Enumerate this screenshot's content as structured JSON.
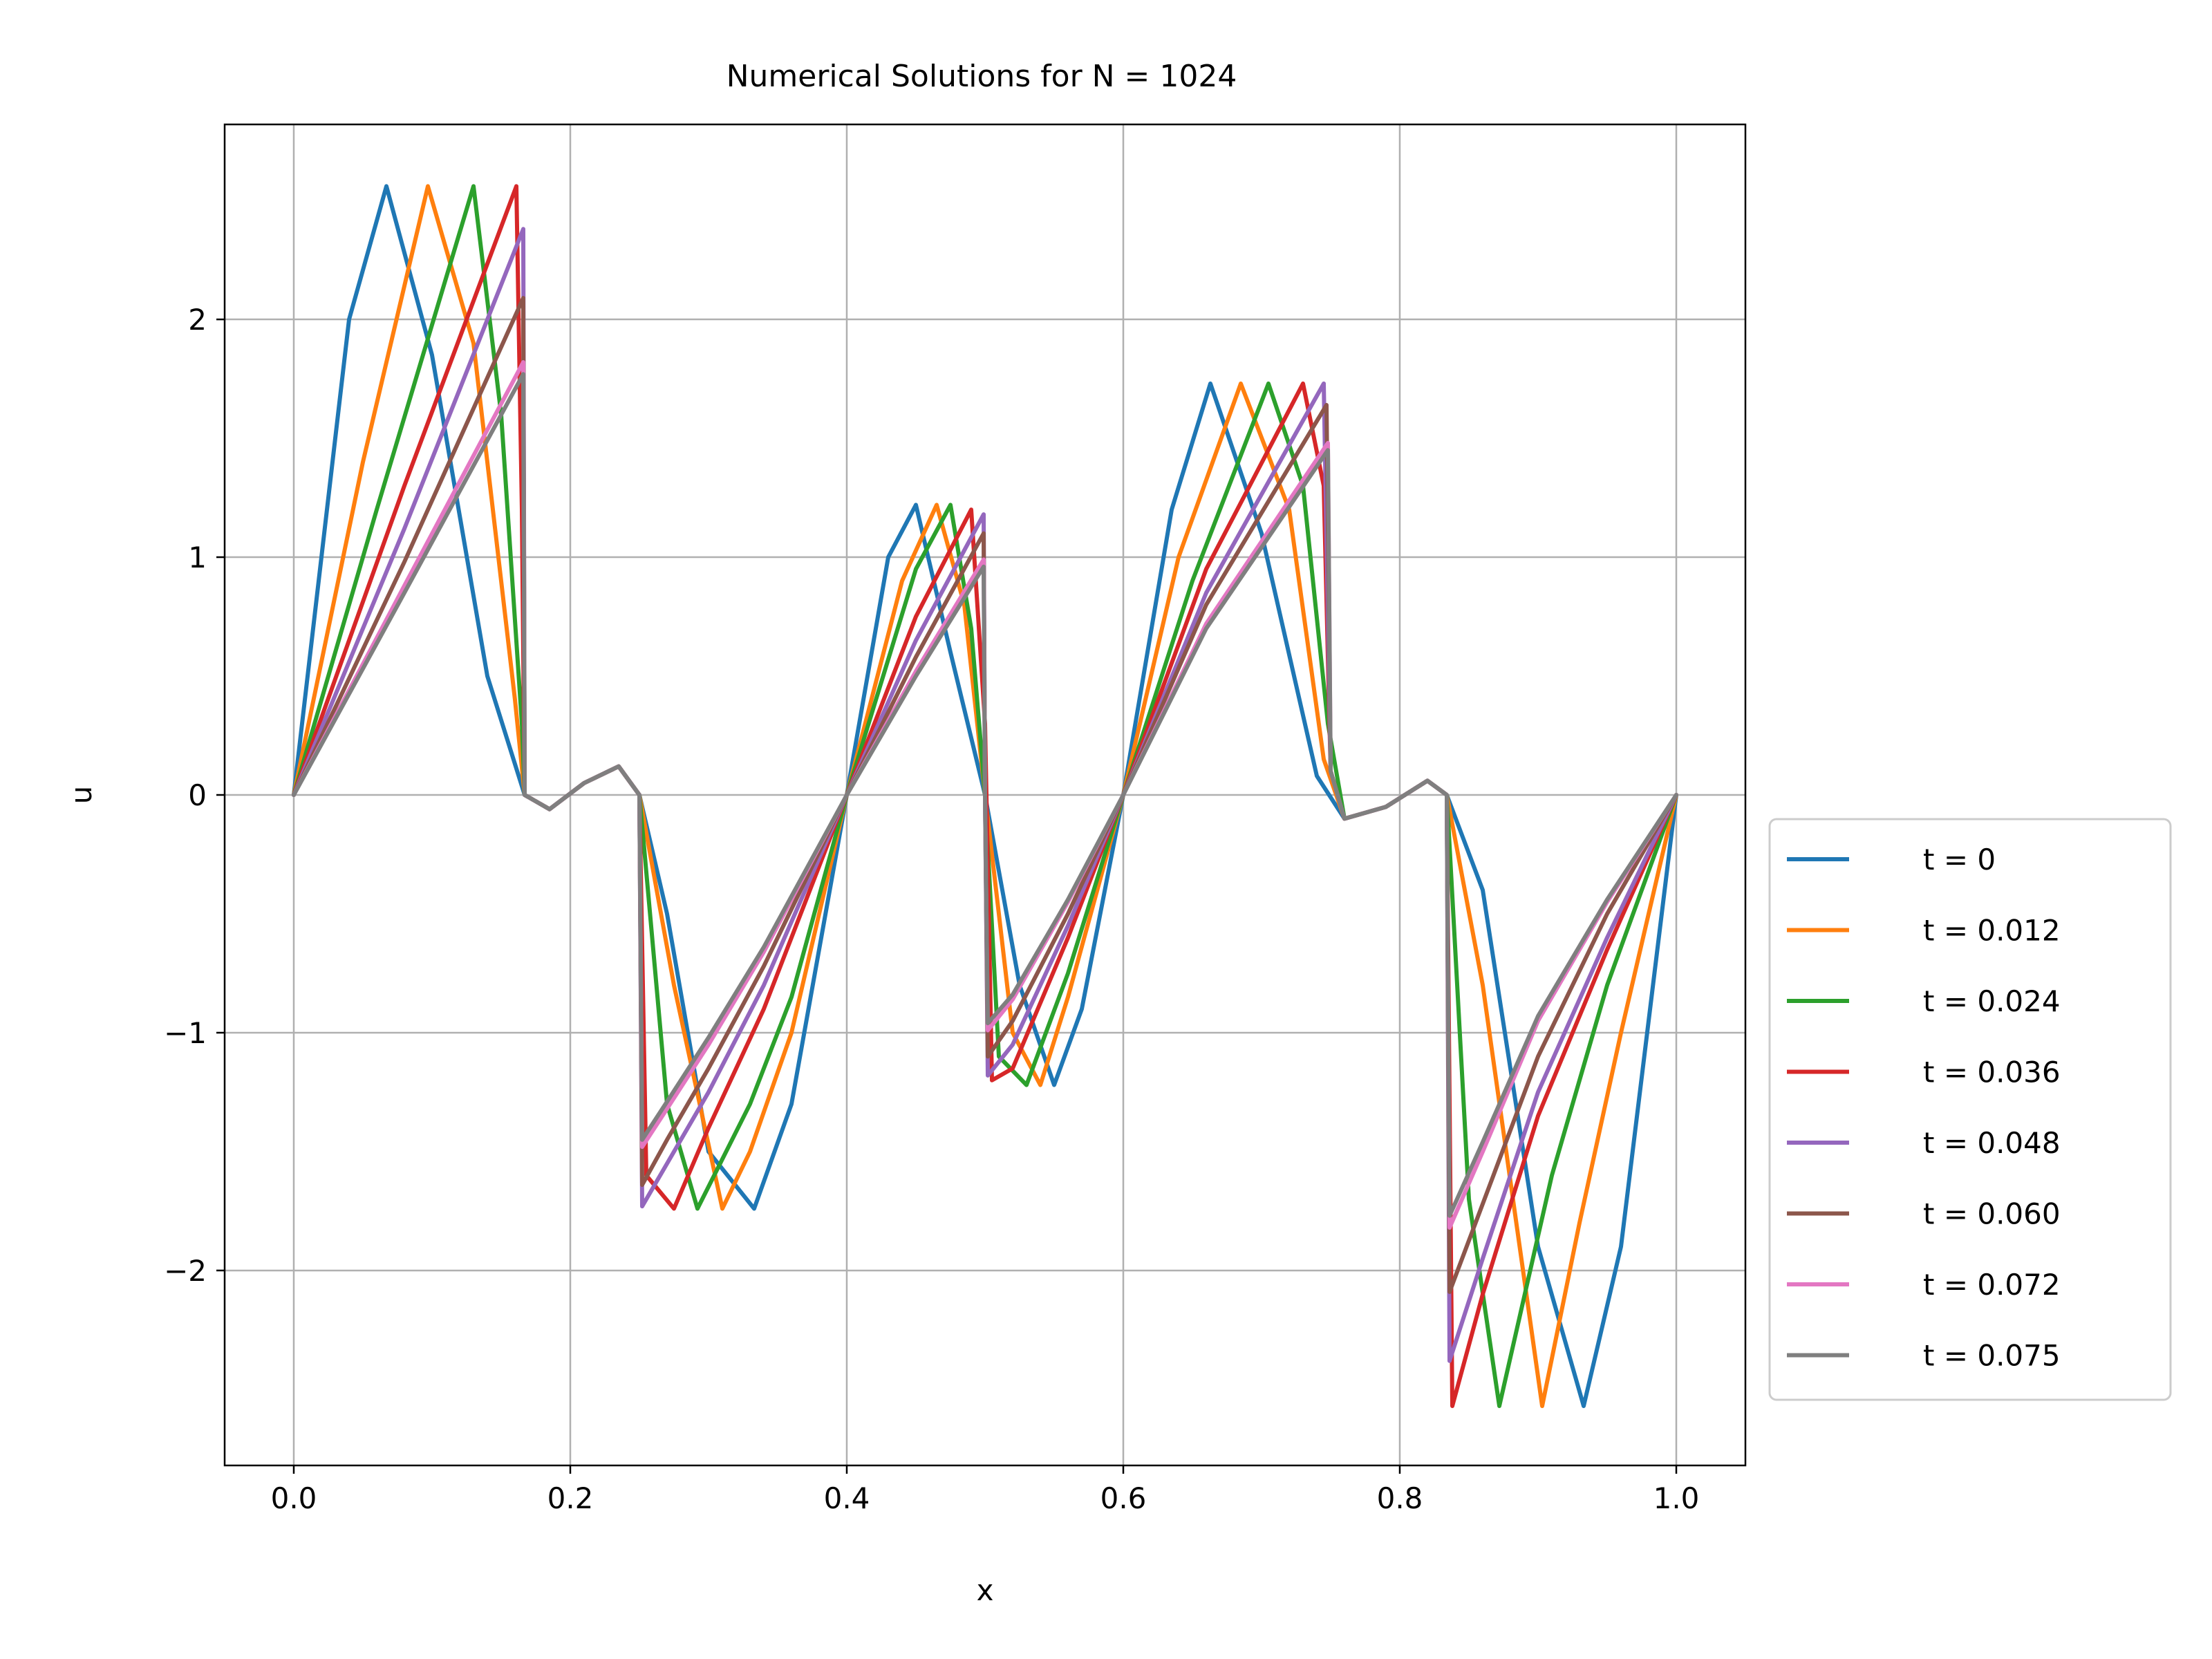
{
  "chart_data": {
    "type": "line",
    "title": "Numerical Solutions for N = 1024",
    "xlabel": "x",
    "ylabel": "u",
    "xlim": [
      -0.05,
      1.05
    ],
    "ylim": [
      -2.82,
      2.82
    ],
    "xticks": [
      0.0,
      0.2,
      0.4,
      0.6,
      0.8,
      1.0
    ],
    "xtick_labels": [
      "0.0",
      "0.2",
      "0.4",
      "0.6",
      "0.8",
      "1.0"
    ],
    "yticks": [
      -2,
      -1,
      0,
      1,
      2
    ],
    "ytick_labels": [
      "−2",
      "−1",
      "0",
      "1",
      "2"
    ],
    "grid": true,
    "legend_position": "outside-right",
    "series": [
      {
        "name": "t = 0",
        "color": "#1f77b4",
        "x": [
          0,
          0.04,
          0.067,
          0.1,
          0.14,
          0.167,
          0.185,
          0.21,
          0.235,
          0.25,
          0.27,
          0.3,
          0.333,
          0.36,
          0.4,
          0.43,
          0.45,
          0.475,
          0.5,
          0.525,
          0.55,
          0.57,
          0.6,
          0.635,
          0.663,
          0.7,
          0.74,
          0.76,
          0.79,
          0.82,
          0.834,
          0.86,
          0.9,
          0.933,
          0.96,
          1.0
        ],
        "y": [
          0,
          2.0,
          2.56,
          1.85,
          0.5,
          0.0,
          -0.06,
          0.05,
          0.12,
          0.0,
          -0.5,
          -1.5,
          -1.74,
          -1.3,
          0.0,
          1.0,
          1.22,
          0.6,
          0.0,
          -0.8,
          -1.22,
          -0.9,
          0.0,
          1.2,
          1.73,
          1.1,
          0.08,
          -0.1,
          -0.05,
          0.06,
          0.0,
          -0.4,
          -1.9,
          -2.57,
          -1.9,
          0.0
        ]
      },
      {
        "name": "t = 0.012",
        "color": "#ff7f0e",
        "x": [
          0,
          0.05,
          0.097,
          0.13,
          0.16,
          0.167,
          0.185,
          0.21,
          0.235,
          0.25,
          0.275,
          0.31,
          0.33,
          0.36,
          0.4,
          0.44,
          0.465,
          0.485,
          0.5,
          0.52,
          0.54,
          0.56,
          0.6,
          0.64,
          0.685,
          0.72,
          0.745,
          0.76,
          0.79,
          0.82,
          0.834,
          0.86,
          0.903,
          0.93,
          0.96,
          1.0
        ],
        "y": [
          0,
          1.4,
          2.56,
          1.9,
          0.4,
          0.0,
          -0.06,
          0.05,
          0.12,
          0.0,
          -0.8,
          -1.74,
          -1.5,
          -1.0,
          0.0,
          0.9,
          1.22,
          0.8,
          0.0,
          -1.0,
          -1.22,
          -0.85,
          0.0,
          1.0,
          1.73,
          1.2,
          0.15,
          -0.1,
          -0.05,
          0.06,
          0.0,
          -0.8,
          -2.57,
          -1.8,
          -1.0,
          0.0
        ]
      },
      {
        "name": "t = 0.024",
        "color": "#2ca02c",
        "x": [
          0,
          0.06,
          0.13,
          0.15,
          0.165,
          0.167,
          0.185,
          0.21,
          0.235,
          0.25,
          0.27,
          0.292,
          0.33,
          0.36,
          0.4,
          0.45,
          0.475,
          0.49,
          0.5,
          0.51,
          0.53,
          0.56,
          0.6,
          0.65,
          0.705,
          0.73,
          0.748,
          0.76,
          0.79,
          0.82,
          0.834,
          0.85,
          0.872,
          0.91,
          0.95,
          1.0
        ],
        "y": [
          0,
          1.2,
          2.56,
          1.6,
          0.3,
          0.0,
          -0.06,
          0.05,
          0.12,
          0.0,
          -1.3,
          -1.74,
          -1.3,
          -0.85,
          0.0,
          0.95,
          1.22,
          0.7,
          0.0,
          -1.1,
          -1.22,
          -0.75,
          0.0,
          0.9,
          1.73,
          1.3,
          0.3,
          -0.1,
          -0.05,
          0.06,
          0.0,
          -1.7,
          -2.57,
          -1.6,
          -0.8,
          0.0
        ]
      },
      {
        "name": "t = 0.036",
        "color": "#d62728",
        "x": [
          0,
          0.08,
          0.161,
          0.165,
          0.167,
          0.185,
          0.21,
          0.235,
          0.25,
          0.255,
          0.275,
          0.3,
          0.34,
          0.4,
          0.45,
          0.49,
          0.5,
          0.505,
          0.52,
          0.56,
          0.6,
          0.66,
          0.73,
          0.745,
          0.75,
          0.76,
          0.79,
          0.82,
          0.834,
          0.838,
          0.86,
          0.9,
          0.95,
          1.0
        ],
        "y": [
          0,
          1.3,
          2.56,
          1.2,
          0.0,
          -0.06,
          0.05,
          0.12,
          0.0,
          -1.6,
          -1.74,
          -1.4,
          -0.9,
          0.0,
          0.75,
          1.2,
          0.3,
          -1.2,
          -1.15,
          -0.6,
          0.0,
          0.95,
          1.73,
          1.3,
          0.1,
          -0.1,
          -0.05,
          0.06,
          0.0,
          -2.57,
          -2.1,
          -1.35,
          -0.65,
          0.0
        ]
      },
      {
        "name": "t = 0.048",
        "color": "#9467bd",
        "x": [
          0,
          0.08,
          0.166,
          0.167,
          0.185,
          0.21,
          0.235,
          0.25,
          0.252,
          0.27,
          0.3,
          0.34,
          0.4,
          0.45,
          0.499,
          0.5,
          0.502,
          0.52,
          0.56,
          0.6,
          0.66,
          0.745,
          0.75,
          0.76,
          0.79,
          0.82,
          0.834,
          0.836,
          0.86,
          0.9,
          0.95,
          1.0
        ],
        "y": [
          0,
          1.12,
          2.38,
          0.0,
          -0.06,
          0.05,
          0.12,
          0.0,
          -1.73,
          -1.55,
          -1.25,
          -0.8,
          0.0,
          0.65,
          1.18,
          0.0,
          -1.18,
          -1.05,
          -0.55,
          0.0,
          0.85,
          1.73,
          0.1,
          -0.1,
          -0.05,
          0.06,
          0.0,
          -2.38,
          -1.95,
          -1.25,
          -0.6,
          0.0
        ]
      },
      {
        "name": "t = 0.060",
        "color": "#8c564b",
        "x": [
          0,
          0.08,
          0.166,
          0.167,
          0.185,
          0.21,
          0.235,
          0.25,
          0.252,
          0.27,
          0.3,
          0.34,
          0.4,
          0.45,
          0.499,
          0.5,
          0.502,
          0.52,
          0.56,
          0.6,
          0.66,
          0.747,
          0.75,
          0.76,
          0.79,
          0.82,
          0.834,
          0.836,
          0.86,
          0.9,
          0.95,
          1.0
        ],
        "y": [
          0,
          0.98,
          2.09,
          0.0,
          -0.06,
          0.05,
          0.12,
          0.0,
          -1.64,
          -1.45,
          -1.15,
          -0.72,
          0.0,
          0.58,
          1.1,
          0.0,
          -1.1,
          -0.95,
          -0.5,
          0.0,
          0.8,
          1.64,
          0.1,
          -0.1,
          -0.05,
          0.06,
          0.0,
          -2.09,
          -1.72,
          -1.1,
          -0.5,
          0.0
        ]
      },
      {
        "name": "t = 0.072",
        "color": "#e377c2",
        "x": [
          0,
          0.08,
          0.166,
          0.167,
          0.185,
          0.21,
          0.235,
          0.25,
          0.252,
          0.27,
          0.3,
          0.34,
          0.4,
          0.45,
          0.499,
          0.5,
          0.502,
          0.52,
          0.56,
          0.6,
          0.66,
          0.748,
          0.75,
          0.76,
          0.79,
          0.82,
          0.834,
          0.836,
          0.86,
          0.9,
          0.95,
          1.0
        ],
        "y": [
          0,
          0.88,
          1.82,
          0.0,
          -0.06,
          0.05,
          0.12,
          0.0,
          -1.48,
          -1.32,
          -1.05,
          -0.66,
          0.0,
          0.52,
          0.99,
          0.0,
          -0.99,
          -0.86,
          -0.45,
          0.0,
          0.72,
          1.48,
          0.1,
          -0.1,
          -0.05,
          0.06,
          0.0,
          -1.82,
          -1.5,
          -0.95,
          -0.45,
          0.0
        ]
      },
      {
        "name": "t = 0.075",
        "color": "#7f7f7f",
        "x": [
          0,
          0.08,
          0.166,
          0.167,
          0.185,
          0.21,
          0.235,
          0.25,
          0.252,
          0.27,
          0.3,
          0.34,
          0.4,
          0.45,
          0.499,
          0.5,
          0.502,
          0.52,
          0.56,
          0.6,
          0.66,
          0.748,
          0.75,
          0.76,
          0.79,
          0.82,
          0.834,
          0.836,
          0.86,
          0.9,
          0.95,
          1.0
        ],
        "y": [
          0,
          0.85,
          1.77,
          0.0,
          -0.06,
          0.05,
          0.12,
          0.0,
          -1.45,
          -1.29,
          -1.02,
          -0.64,
          0.0,
          0.5,
          0.96,
          0.0,
          -0.96,
          -0.84,
          -0.44,
          0.0,
          0.7,
          1.45,
          0.1,
          -0.1,
          -0.05,
          0.06,
          0.0,
          -1.77,
          -1.46,
          -0.93,
          -0.44,
          0.0
        ]
      }
    ]
  }
}
